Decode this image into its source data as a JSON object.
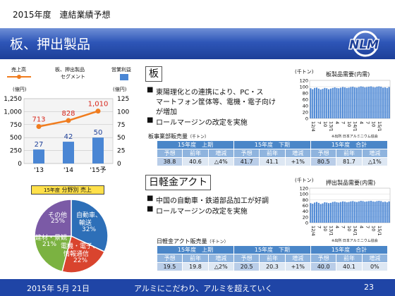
{
  "header": {
    "title": "2015年度　連結業績予想"
  },
  "banner": {
    "title": "板、押出製品"
  },
  "footer": {
    "date": "2015年 5月 21日",
    "slogan": "アルミにこだわり、アルミを超えていく",
    "page": "23"
  },
  "left_chart": {
    "legend_sales": "売上高",
    "legend_segment_1": "板、押出製品",
    "legend_segment_2": "セグメント",
    "legend_op": "営業利益",
    "unit_left": "(億円)",
    "unit_right": "(億円)",
    "left_ticks": [
      "1,250",
      "1,000",
      "750",
      "500",
      "250",
      "0"
    ],
    "right_ticks": [
      "125",
      "100",
      "75",
      "50",
      "25",
      "0"
    ],
    "line_labels": [
      "713",
      "828",
      "1,010"
    ],
    "bar_labels": [
      "27",
      "42",
      "50"
    ],
    "categories": [
      "'13",
      "'14",
      "'15予"
    ],
    "colors": {
      "line": "#f07c1e",
      "bar": "#4a86d4"
    }
  },
  "pie": {
    "title_prefix": "15年度",
    "title_main": "分野別 売上",
    "labels": {
      "other": "その他",
      "other_pct": "25%",
      "auto": "自動車、",
      "auto2": "輸送",
      "auto_pct": "32%",
      "build": "建材・景観",
      "build_pct": "21%",
      "elec": "電機・電子、",
      "elec2": "情報通信",
      "elec_pct": "22%"
    },
    "colors": {
      "auto": "#2d6fb8",
      "elec": "#d9442e",
      "build": "#7bb241",
      "other": "#7b5aa6"
    }
  },
  "sheet": {
    "heading": "板",
    "bullets": [
      "東陽理化との連携により、PC・ス",
      "マートフォン筐体等、電機・電子向け",
      "が増加",
      "ロールマージンの改定を実施"
    ],
    "table_title": "板事業部販売量",
    "table_unit": "（千トン）"
  },
  "extr": {
    "heading": "日軽金アクト",
    "bullets": [
      "中国の自動車・鉄道部品加工が好調",
      "ロールマージンの改定を実施"
    ],
    "table_title": "日軽金アクト販売量",
    "table_unit": "（千トン）"
  },
  "tables": {
    "groups": [
      "15年度　上期",
      "15年度　下期",
      "15年度　合計"
    ],
    "cols": [
      "予想",
      "前年",
      "増減"
    ],
    "sheet_rows": [
      [
        "38.8",
        "40.6",
        "△4%"
      ],
      [
        "41.7",
        "41.1",
        "+1%"
      ],
      [
        "80.5",
        "81.7",
        "△1%"
      ]
    ],
    "extr_rows": [
      [
        "19.5",
        "19.8",
        "△2%"
      ],
      [
        "20.5",
        "20.3",
        "+1%"
      ],
      [
        "40.0",
        "40.1",
        "0%"
      ]
    ]
  },
  "chart_data": [
    {
      "type": "bar",
      "title": "板、押出製品 セグメント",
      "categories": [
        "'13",
        "'14",
        "'15予"
      ],
      "series": [
        {
          "name": "売上高",
          "type": "line",
          "values": [
            713,
            828,
            1010
          ]
        },
        {
          "name": "営業利益",
          "type": "bar",
          "values": [
            27,
            42,
            50
          ]
        }
      ],
      "ylim": [
        0,
        1250
      ],
      "y2lim": [
        0,
        125
      ]
    },
    {
      "type": "bar",
      "title": "板製品需要(内需)",
      "unit": "(千トン)",
      "ylim": [
        0,
        120
      ],
      "yticks": [
        "120",
        "100",
        "80",
        "60",
        "40",
        "20",
        "0"
      ],
      "xticks": [
        "12/4",
        "7",
        "10",
        "13/1",
        "4",
        "7",
        "10",
        "14/1",
        "4",
        "7",
        "10",
        "15/1"
      ],
      "values": [
        95,
        92,
        96,
        97,
        94,
        91,
        93,
        96,
        95,
        92,
        94,
        96,
        98,
        96,
        95,
        97,
        99,
        98,
        96,
        97,
        99,
        100,
        98,
        97,
        99,
        101,
        100,
        98,
        99,
        100,
        101,
        99,
        98,
        100,
        101,
        100,
        97,
        98,
        96,
        99
      ],
      "note": "※出所 日本アルミニウム協会",
      "color": "#4a86d4"
    },
    {
      "type": "bar",
      "title": "押出製品需要(内需)",
      "unit": "(千トン)",
      "ylim": [
        0,
        120
      ],
      "yticks": [
        "120",
        "100",
        "80",
        "60",
        "40",
        "20",
        "0"
      ],
      "xticks": [
        "12/4",
        "7",
        "10",
        "13/1",
        "4",
        "7",
        "10",
        "14/1",
        "4",
        "7",
        "10",
        "15/1"
      ],
      "values": [
        68,
        66,
        70,
        72,
        69,
        65,
        67,
        71,
        70,
        68,
        69,
        72,
        73,
        71,
        70,
        72,
        74,
        73,
        71,
        72,
        74,
        75,
        73,
        72,
        74,
        76,
        75,
        73,
        74,
        75,
        76,
        74,
        73,
        75,
        76,
        75,
        72,
        73,
        71,
        74
      ],
      "note": "※出所 日本アルミニウム協会",
      "color": "#4a86d4"
    }
  ]
}
